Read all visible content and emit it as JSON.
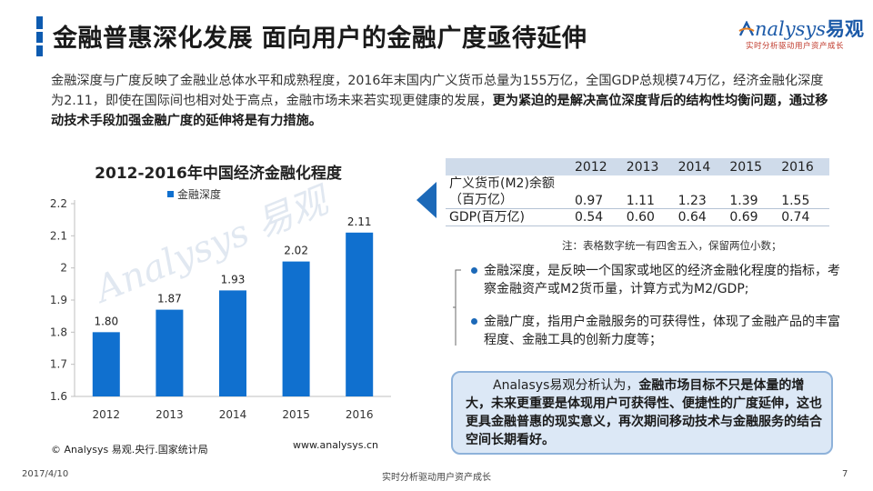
{
  "header": {
    "title": "金融普惠深化发展  面向用户的金融广度亟待延伸",
    "logo_word": "nalysys",
    "logo_cn": "易观",
    "logo_tagline": "实时分析驱动用户资产成长"
  },
  "intro": {
    "text": "金融深度与广度反映了金融业总体水平和成熟程度，2016年末国内广义货币总量为155万亿，全国GDP总规模74万亿，经济金融化深度为2.11，即使在国际间也相对处于高点，金融市场未来若实现更健康的发展，",
    "bold": "更为紧迫的是解决高位深度背后的结构性均衡问题，通过移动技术手段加强金融广度的延伸将是有力措施。"
  },
  "chart_data": {
    "type": "bar",
    "title": "2012-2016年中国经济金融化程度",
    "categories": [
      "2012",
      "2013",
      "2014",
      "2015",
      "2016"
    ],
    "series": [
      {
        "name": "金融深度",
        "values": [
          1.8,
          1.87,
          1.93,
          2.02,
          2.11
        ]
      }
    ],
    "data_labels": [
      "1.80",
      "1.87",
      "1.93",
      "2.02",
      "2.11"
    ],
    "y_ticks": [
      "1.6",
      "1.7",
      "1.8",
      "1.9",
      "2",
      "2.1",
      "2.2"
    ],
    "ylim": [
      1.6,
      2.2
    ],
    "grid": false,
    "legend": "top-left",
    "bar_color": "#1070cf"
  },
  "chart_source": "© Analysys 易观.央行.国家统计局",
  "chart_site": "www.analysys.cn",
  "watermark": "Analysys 易观",
  "table": {
    "years": [
      "2012",
      "2013",
      "2014",
      "2015",
      "2016"
    ],
    "rows": [
      {
        "label": "广义货币(M2)余额（百万亿）",
        "values": [
          "0.97",
          "1.11",
          "1.23",
          "1.39",
          "1.55"
        ]
      },
      {
        "label": "GDP(百万亿)",
        "values": [
          "0.54",
          "0.60",
          "0.64",
          "0.69",
          "0.74"
        ]
      }
    ],
    "note": "注：表格数字统一有四舍五入，保留两位小数；"
  },
  "bullets": [
    "金融深度，是反映一个国家或地区的经济金融化程度的指标，考察金融资产或M2货币量，计算方式为M2/GDP;",
    "金融广度，指用户金融服务的可获得性，体现了金融产品的丰富程度、金融工具的创新力度等；"
  ],
  "conclusion": {
    "prefix": "Analasys易观分析认为，",
    "bold": "金融市场目标不只是体量的增大，未来更重要是体现用户可获得性、便捷性的广度延伸，这也更具金融普惠的现实意义，再次期间移动技术与金融服务的结合空间长期看好。"
  },
  "footer": {
    "date": "2017/4/10",
    "center": "实时分析驱动用户资产成长",
    "page": "7"
  }
}
